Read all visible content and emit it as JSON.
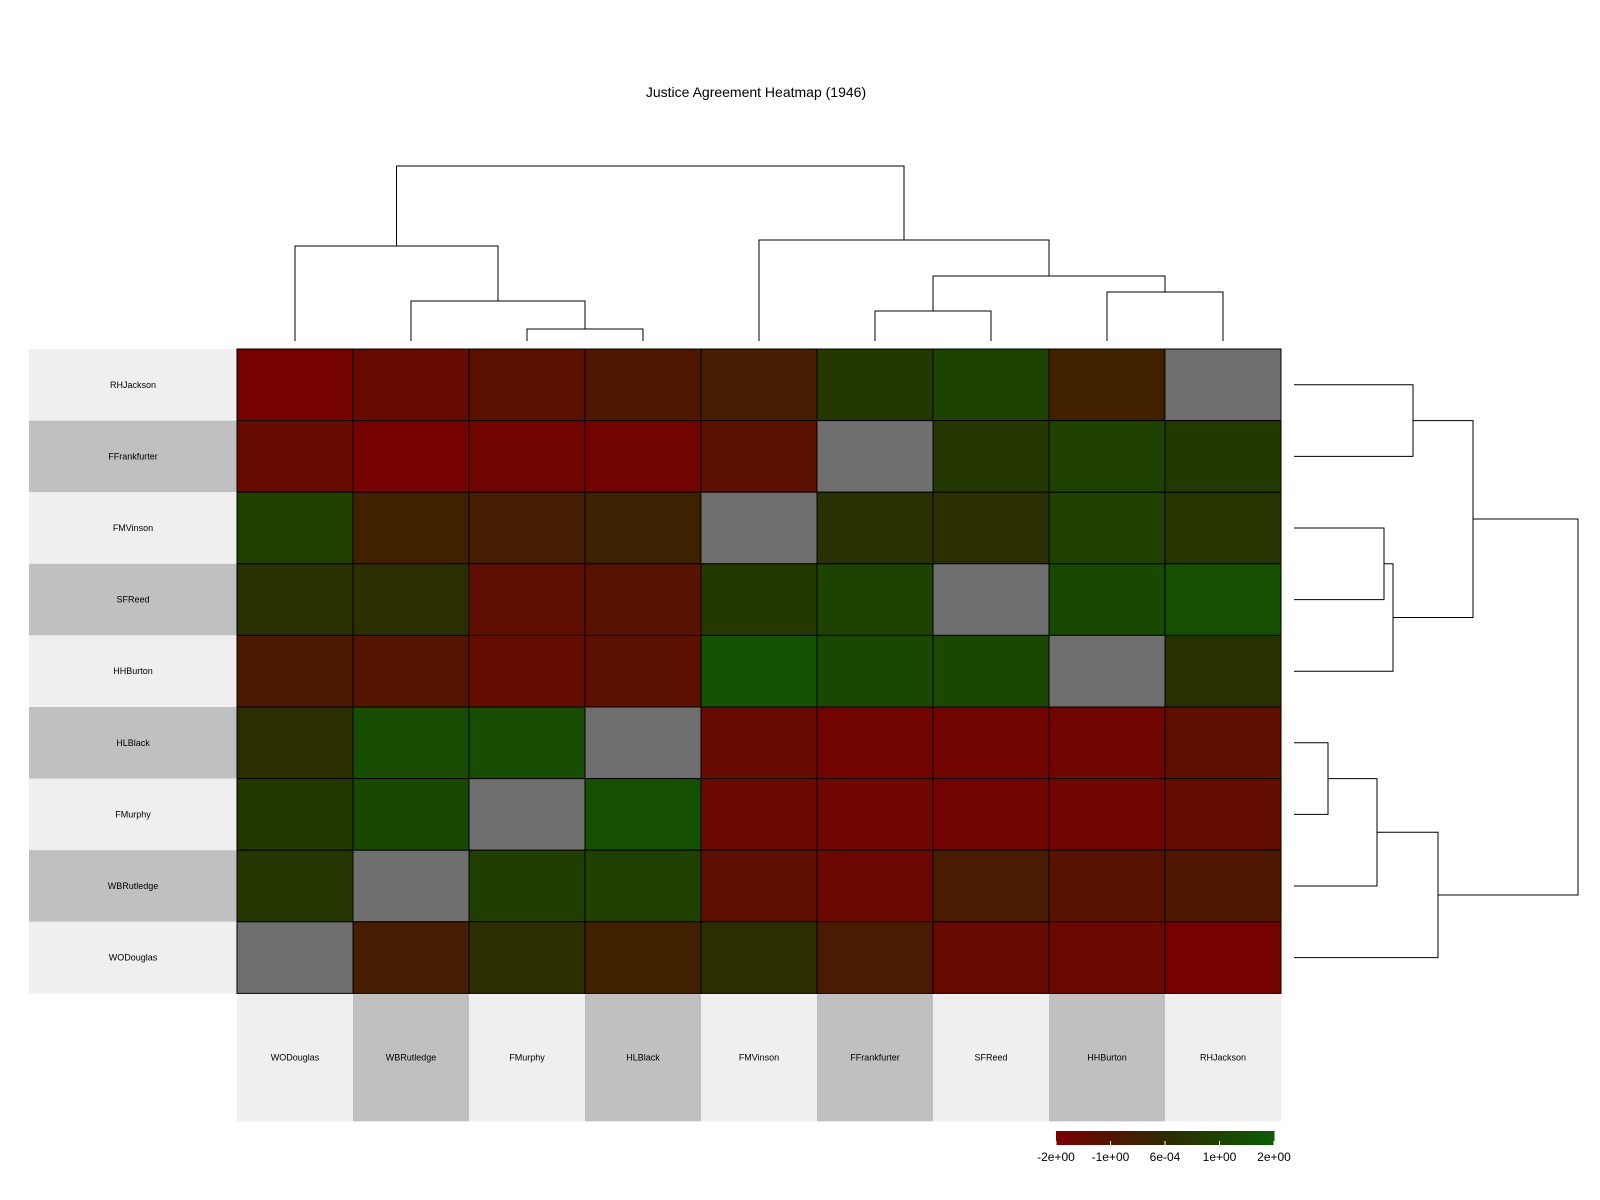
{
  "chart_data": {
    "type": "heatmap",
    "title": "Justice Agreement Heatmap (1946)",
    "rows": [
      "RHJackson",
      "FFrankfurter",
      "FMVinson",
      "SFReed",
      "HHBurton",
      "HLBlack",
      "FMurphy",
      "WBRutledge",
      "WODouglas"
    ],
    "columns": [
      "WODouglas",
      "WBRutledge",
      "FMurphy",
      "HLBlack",
      "FMVinson",
      "FFrankfurter",
      "SFReed",
      "HHBurton",
      "RHJackson"
    ],
    "values": [
      [
        -1.9,
        -1.5,
        -1.2,
        -0.9,
        -0.6,
        0.6,
        1.0,
        -0.5,
        null
      ],
      [
        -1.5,
        -1.9,
        -1.8,
        -1.8,
        -1.2,
        null,
        0.5,
        0.9,
        0.6
      ],
      [
        0.9,
        -0.5,
        -0.6,
        -0.4,
        null,
        0.3,
        0.2,
        0.9,
        0.4
      ],
      [
        0.3,
        0.2,
        -1.3,
        -1.1,
        0.6,
        1.0,
        null,
        1.2,
        1.5
      ],
      [
        -0.8,
        -1.0,
        -1.4,
        -1.2,
        1.6,
        1.2,
        1.2,
        null,
        0.3
      ],
      [
        0.2,
        1.3,
        1.4,
        null,
        -1.5,
        -1.8,
        -1.8,
        -1.7,
        -1.3
      ],
      [
        0.6,
        1.2,
        null,
        1.5,
        -1.6,
        -1.7,
        -1.8,
        -1.7,
        -1.4
      ],
      [
        0.5,
        null,
        0.8,
        0.9,
        -1.3,
        -1.6,
        -0.7,
        -1.1,
        -0.9
      ],
      [
        null,
        -0.6,
        0.1,
        -0.5,
        0.1,
        -0.7,
        -1.5,
        -1.6,
        -1.9
      ]
    ],
    "legend": {
      "ticks": [
        "-2e+00",
        "-1e+00",
        "6e-04",
        "1e+00",
        "2e+00"
      ],
      "range": [
        -2,
        2
      ],
      "low_color": "#7a0000",
      "mid_color": "#2e2a00",
      "high_color": "#0b5c00"
    },
    "missing_color": "#6f6f6f",
    "label_band_colors": [
      "#efefef",
      "#c0c0c0"
    ],
    "column_dendrogram": true,
    "row_dendrogram": true
  }
}
